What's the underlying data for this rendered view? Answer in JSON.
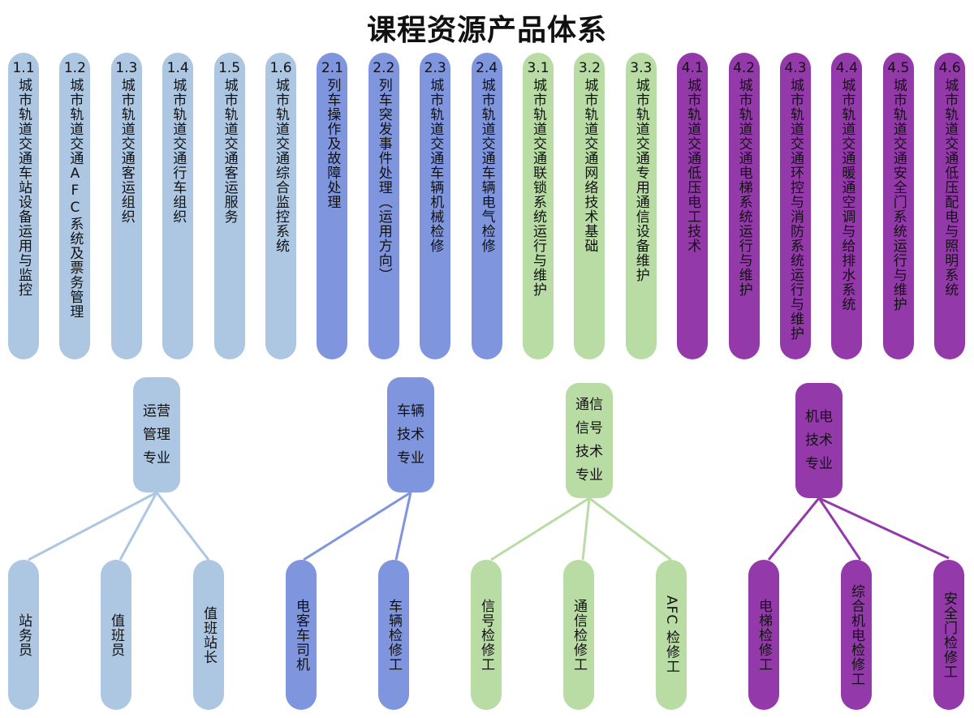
{
  "title": "课程资源产品体系",
  "colors": {
    "ops": "#adc6e2",
    "vehicle": "#7f95de",
    "signal": "#b9dca5",
    "mep": "#9339aa"
  },
  "courses": [
    {
      "num": "1.1",
      "name": "城市轨道交通车站设备运用与监控",
      "group": "ops"
    },
    {
      "num": "1.2",
      "name": "城市轨道交通AFC系统及票务管理",
      "group": "ops"
    },
    {
      "num": "1.3",
      "name": "城市轨道交通客运组织",
      "group": "ops"
    },
    {
      "num": "1.4",
      "name": "城市轨道交通行车组织",
      "group": "ops"
    },
    {
      "num": "1.5",
      "name": "城市轨道交通客运服务",
      "group": "ops"
    },
    {
      "num": "1.6",
      "name": "城市轨道交通综合监控系统",
      "group": "ops"
    },
    {
      "num": "2.1",
      "name": "列车操作及故障处理",
      "group": "vehicle"
    },
    {
      "num": "2.2",
      "name": "列车突发事件处理（运用方向）",
      "group": "vehicle"
    },
    {
      "num": "2.3",
      "name": "城市轨道交通车辆机械检修",
      "group": "vehicle"
    },
    {
      "num": "2.4",
      "name": "城市轨道交通车辆电气检修",
      "group": "vehicle"
    },
    {
      "num": "3.1",
      "name": "城市轨道交通联锁系统运行与维护",
      "group": "signal"
    },
    {
      "num": "3.2",
      "name": "城市轨道交通网络技术基础",
      "group": "signal"
    },
    {
      "num": "3.3",
      "name": "城市轨道交通专用通信设备维护",
      "group": "signal"
    },
    {
      "num": "4.1",
      "name": "城市轨道交通低压电工技术",
      "group": "mep"
    },
    {
      "num": "4.2",
      "name": "城市轨道交通电梯系统运行与维护",
      "group": "mep"
    },
    {
      "num": "4.3",
      "name": "城市轨道交通环控与消防系统运行与维护",
      "group": "mep"
    },
    {
      "num": "4.4",
      "name": "城市轨道交通暖通空调与给排水系统",
      "group": "mep"
    },
    {
      "num": "4.5",
      "name": "城市轨道交通安全门系统运行与维护",
      "group": "mep"
    },
    {
      "num": "4.6",
      "name": "城市轨道交通低压配电与照明系统",
      "group": "mep"
    }
  ],
  "majors": [
    {
      "name": "运营管理专业",
      "group": "ops",
      "lines": [
        "运营",
        "管理",
        "专业"
      ],
      "jobs": [
        "站务员",
        "值班员",
        "值班站长"
      ]
    },
    {
      "name": "车辆技术专业",
      "group": "vehicle",
      "lines": [
        "车辆",
        "技术",
        "专业"
      ],
      "jobs": [
        "电客车司机",
        "车辆检修工"
      ]
    },
    {
      "name": "通信信号技术专业",
      "group": "signal",
      "lines": [
        "通信",
        "信号",
        "技术",
        "专业"
      ],
      "jobs": [
        "信号检修工",
        "通信检修工",
        "AFC 检修工"
      ]
    },
    {
      "name": "机电技术专业",
      "group": "mep",
      "lines": [
        "机电",
        "技术",
        "专业"
      ],
      "jobs": [
        "电梯检修工",
        "综合机电检修工",
        "安全门检修工"
      ]
    }
  ]
}
